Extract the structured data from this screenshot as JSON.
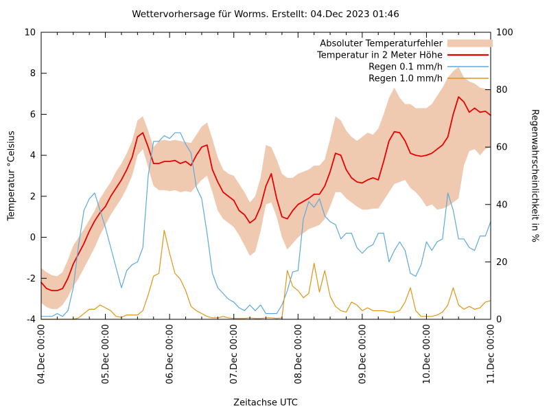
{
  "chart_data": {
    "type": "line",
    "title": "Wettervorhersage für Worms. Erstellt: 04.Dec 2023 01:46",
    "xlabel": "Zeitachse UTC",
    "ylabel_left": "Temperatur °Celsius",
    "ylabel_right": "Regenwahrscheinlichkeit in %",
    "x_range_hours": [
      0,
      168
    ],
    "sample_step_hours": 2,
    "ylim_left": [
      -4,
      10
    ],
    "ylim_right": [
      0,
      100
    ],
    "grid": false,
    "legend_position": "top-right-inside",
    "y_left_ticks": [
      -4,
      -2,
      0,
      2,
      4,
      6,
      8,
      10
    ],
    "y_right_ticks": [
      0,
      20,
      40,
      60,
      80,
      100
    ],
    "x_minor_step_hours": 6,
    "x_major_ticks": [
      {
        "t": 0,
        "label": "04.Dec 00:00"
      },
      {
        "t": 24,
        "label": "05.Dec 00:00"
      },
      {
        "t": 48,
        "label": "06.Dec 00:00"
      },
      {
        "t": 72,
        "label": "07.Dec 00:00"
      },
      {
        "t": 96,
        "label": "08.Dec 00:00"
      },
      {
        "t": 120,
        "label": "09.Dec 00:00"
      },
      {
        "t": 144,
        "label": "10.Dec 00:00"
      },
      {
        "t": 168,
        "label": "11.Dec 00:00"
      }
    ],
    "series": [
      {
        "name": "Absoluter Temperaturfehler",
        "type": "band",
        "axis": "left",
        "color": "#f0c9b1",
        "upper": [
          -1.5,
          -1.7,
          -1.85,
          -1.9,
          -1.7,
          -1.1,
          -0.4,
          0.0,
          0.4,
          0.85,
          1.3,
          1.9,
          2.3,
          2.7,
          3.2,
          3.6,
          4.1,
          4.7,
          5.7,
          5.9,
          5.2,
          4.4,
          4.7,
          4.75,
          4.7,
          4.75,
          4.7,
          4.65,
          4.6,
          5.0,
          5.4,
          5.6,
          4.8,
          3.9,
          3.3,
          3.1,
          3.0,
          2.6,
          2.2,
          1.7,
          2.0,
          2.9,
          4.5,
          4.4,
          3.8,
          3.1,
          2.9,
          2.9,
          3.1,
          3.2,
          3.3,
          3.5,
          3.5,
          3.8,
          4.8,
          5.9,
          5.7,
          5.2,
          4.9,
          4.7,
          4.9,
          5.1,
          5.0,
          5.3,
          6.0,
          6.8,
          7.3,
          6.8,
          6.5,
          6.5,
          6.3,
          6.3,
          6.3,
          6.5,
          6.9,
          7.3,
          7.8,
          8.1,
          8.3,
          7.8,
          7.6,
          7.5,
          7.3,
          7.25,
          7.2
        ],
        "lower": [
          -3.2,
          -3.4,
          -3.5,
          -3.5,
          -3.3,
          -2.9,
          -2.4,
          -2.0,
          -1.5,
          -1.0,
          -0.5,
          0.1,
          0.6,
          1.1,
          1.5,
          1.9,
          2.4,
          3.0,
          4.0,
          4.3,
          3.4,
          2.5,
          2.3,
          2.3,
          2.25,
          2.3,
          2.2,
          2.25,
          2.2,
          2.5,
          2.8,
          3.0,
          2.2,
          1.3,
          0.9,
          0.7,
          0.5,
          0.1,
          -0.4,
          -0.9,
          -0.7,
          0.3,
          1.6,
          1.7,
          1.0,
          0.0,
          -0.6,
          -0.3,
          0.0,
          0.2,
          0.4,
          0.5,
          0.6,
          0.9,
          1.5,
          2.2,
          2.2,
          1.9,
          1.7,
          1.5,
          1.35,
          1.35,
          1.4,
          1.4,
          1.8,
          2.2,
          2.6,
          2.7,
          2.8,
          2.4,
          2.2,
          1.9,
          1.5,
          1.6,
          1.35,
          1.4,
          1.5,
          1.7,
          1.9,
          3.5,
          4.2,
          4.3,
          4.0,
          4.3,
          4.4
        ]
      },
      {
        "name": "Temperatur in 2 Meter Höhe",
        "type": "line",
        "axis": "left",
        "color": "#e60000",
        "width": 1.8,
        "values": [
          -2.2,
          -2.5,
          -2.6,
          -2.6,
          -2.5,
          -2.0,
          -1.3,
          -0.8,
          -0.3,
          0.3,
          0.8,
          1.2,
          1.5,
          2.0,
          2.4,
          2.8,
          3.3,
          3.9,
          4.9,
          5.1,
          4.4,
          3.6,
          3.6,
          3.7,
          3.7,
          3.75,
          3.6,
          3.7,
          3.5,
          4.0,
          4.4,
          4.5,
          3.3,
          2.7,
          2.2,
          2.0,
          1.8,
          1.3,
          1.1,
          0.7,
          0.9,
          1.5,
          2.5,
          3.1,
          1.9,
          1.0,
          0.9,
          1.3,
          1.6,
          1.75,
          1.9,
          2.1,
          2.1,
          2.5,
          3.2,
          4.1,
          4.0,
          3.3,
          2.9,
          2.7,
          2.65,
          2.8,
          2.9,
          2.8,
          3.7,
          4.7,
          5.15,
          5.1,
          4.7,
          4.1,
          4.0,
          3.95,
          4.0,
          4.1,
          4.3,
          4.5,
          4.9,
          6.0,
          6.85,
          6.6,
          6.1,
          6.3,
          6.1,
          6.15,
          5.95
        ]
      },
      {
        "name": "Regen 0.1 mm/h",
        "type": "line",
        "axis": "right",
        "color": "#5ba9dc",
        "width": 1.2,
        "values": [
          1,
          1,
          1,
          2,
          1,
          3,
          11,
          26,
          38,
          42,
          44,
          38,
          32,
          25,
          18,
          11,
          17,
          19,
          20,
          25,
          50,
          62,
          62,
          64,
          63,
          65,
          65,
          61,
          58,
          46,
          42,
          30,
          16,
          11,
          9,
          7,
          6,
          4,
          3,
          5,
          3,
          5,
          2,
          2,
          2,
          5,
          10,
          16.5,
          17,
          35,
          41,
          39,
          42,
          36,
          34,
          33,
          28,
          30,
          30,
          25,
          23,
          25,
          26,
          30,
          30,
          20,
          24,
          27,
          24,
          16,
          15,
          19,
          27,
          24,
          27,
          28,
          44,
          38,
          28,
          28,
          25,
          24,
          29,
          29,
          34
        ]
      },
      {
        "name": "Regen 1.0 mm/h",
        "type": "line",
        "axis": "right",
        "color": "#e29413",
        "width": 1.2,
        "values": [
          0,
          0,
          0,
          0,
          0,
          0,
          0,
          0.5,
          2,
          3.5,
          3.5,
          5,
          4,
          3,
          1,
          0.7,
          1.5,
          1.5,
          1.5,
          3,
          8.5,
          15,
          16,
          31,
          23,
          16,
          14,
          10,
          4.5,
          3,
          2,
          1,
          0.5,
          0.5,
          1,
          0.5,
          0.3,
          0.3,
          0.3,
          0.5,
          0.3,
          0.3,
          0.5,
          0.5,
          0.3,
          0.5,
          17,
          11.5,
          10,
          7.5,
          9,
          19.5,
          9.5,
          17,
          8,
          4.5,
          3,
          2.5,
          6,
          5,
          3,
          4,
          3,
          3,
          3,
          2.5,
          2.5,
          3,
          6,
          11,
          3,
          1,
          1,
          1,
          1.5,
          2.5,
          5,
          11,
          5,
          3.5,
          4.5,
          3.5,
          4,
          6,
          6.5
        ]
      }
    ],
    "frame_color": "#000000",
    "background_color": "#ffffff"
  }
}
